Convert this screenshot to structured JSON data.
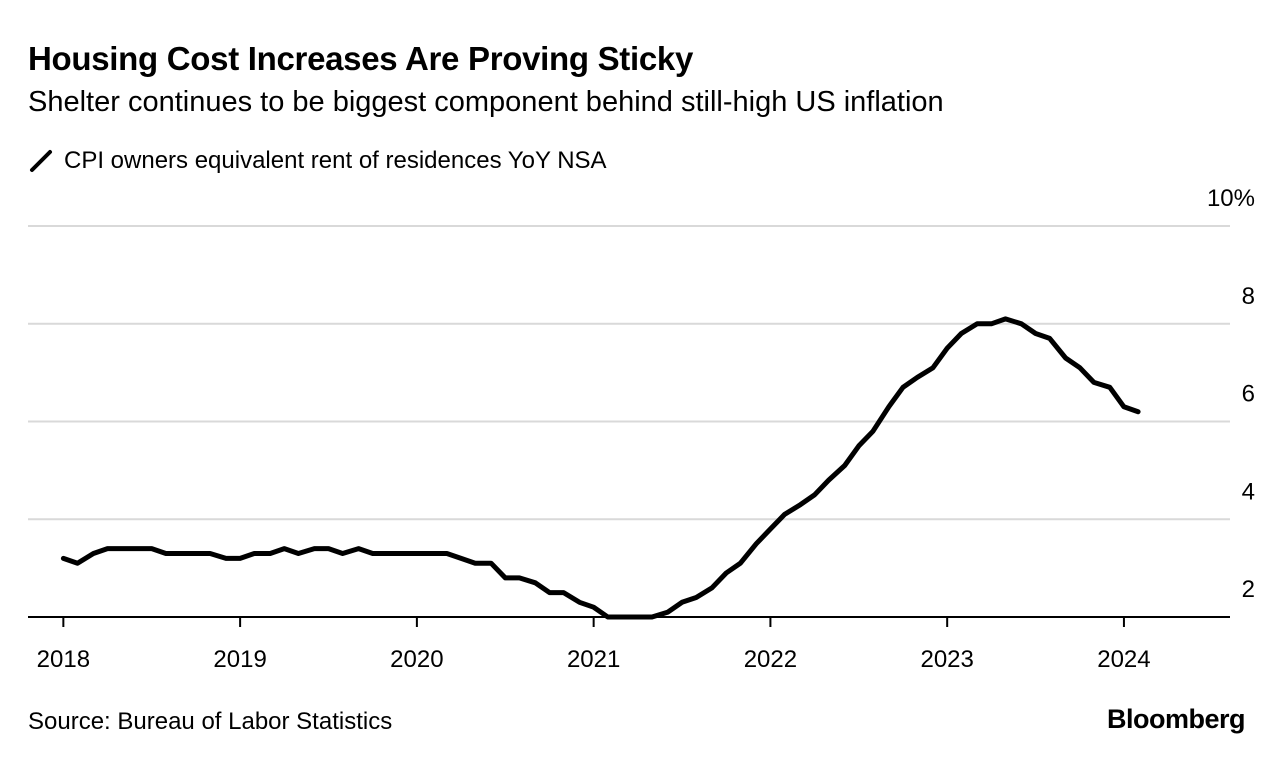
{
  "header": {
    "title": "Housing Cost Increases Are Proving Sticky",
    "subtitle": "Shelter continues to be biggest component behind still-high US inflation"
  },
  "footer": {
    "source": "Source: Bureau of Labor Statistics",
    "brand": "Bloomberg"
  },
  "colors": {
    "line": "#000000",
    "grid": "#d9d9d9",
    "axis": "#000000"
  },
  "chart_data": {
    "type": "line",
    "title": "Housing Cost Increases Are Proving Sticky",
    "subtitle": "Shelter continues to be biggest component behind still-high US inflation",
    "xlabel": "",
    "ylabel": "",
    "ylim": [
      2,
      10
    ],
    "xlim": [
      2017.8,
      2024.6
    ],
    "grid": true,
    "legend_position": "top-left",
    "y_ticks": [
      {
        "value": 2,
        "label": "2"
      },
      {
        "value": 4,
        "label": "4"
      },
      {
        "value": 6,
        "label": "6"
      },
      {
        "value": 8,
        "label": "8"
      },
      {
        "value": 10,
        "label": "10%"
      }
    ],
    "x_ticks": [
      {
        "value": 2018,
        "label": "2018"
      },
      {
        "value": 2019,
        "label": "2019"
      },
      {
        "value": 2020,
        "label": "2020"
      },
      {
        "value": 2021,
        "label": "2021"
      },
      {
        "value": 2022,
        "label": "2022"
      },
      {
        "value": 2023,
        "label": "2023"
      },
      {
        "value": 2024,
        "label": "2024"
      }
    ],
    "series": [
      {
        "name": "CPI owners equivalent rent of residences YoY NSA",
        "points": [
          [
            2018.0,
            3.2
          ],
          [
            2018.08,
            3.1
          ],
          [
            2018.17,
            3.3
          ],
          [
            2018.25,
            3.4
          ],
          [
            2018.33,
            3.4
          ],
          [
            2018.42,
            3.4
          ],
          [
            2018.5,
            3.4
          ],
          [
            2018.58,
            3.3
          ],
          [
            2018.67,
            3.3
          ],
          [
            2018.75,
            3.3
          ],
          [
            2018.83,
            3.3
          ],
          [
            2018.92,
            3.2
          ],
          [
            2019.0,
            3.2
          ],
          [
            2019.08,
            3.3
          ],
          [
            2019.17,
            3.3
          ],
          [
            2019.25,
            3.4
          ],
          [
            2019.33,
            3.3
          ],
          [
            2019.42,
            3.4
          ],
          [
            2019.5,
            3.4
          ],
          [
            2019.58,
            3.3
          ],
          [
            2019.67,
            3.4
          ],
          [
            2019.75,
            3.3
          ],
          [
            2019.83,
            3.3
          ],
          [
            2019.92,
            3.3
          ],
          [
            2020.0,
            3.3
          ],
          [
            2020.08,
            3.3
          ],
          [
            2020.17,
            3.3
          ],
          [
            2020.25,
            3.2
          ],
          [
            2020.33,
            3.1
          ],
          [
            2020.42,
            3.1
          ],
          [
            2020.5,
            2.8
          ],
          [
            2020.58,
            2.8
          ],
          [
            2020.67,
            2.7
          ],
          [
            2020.75,
            2.5
          ],
          [
            2020.83,
            2.5
          ],
          [
            2020.92,
            2.3
          ],
          [
            2021.0,
            2.2
          ],
          [
            2021.08,
            2.0
          ],
          [
            2021.17,
            2.0
          ],
          [
            2021.25,
            2.0
          ],
          [
            2021.33,
            2.0
          ],
          [
            2021.42,
            2.1
          ],
          [
            2021.5,
            2.3
          ],
          [
            2021.58,
            2.4
          ],
          [
            2021.67,
            2.6
          ],
          [
            2021.75,
            2.9
          ],
          [
            2021.83,
            3.1
          ],
          [
            2021.92,
            3.5
          ],
          [
            2022.0,
            3.8
          ],
          [
            2022.08,
            4.1
          ],
          [
            2022.17,
            4.3
          ],
          [
            2022.25,
            4.5
          ],
          [
            2022.33,
            4.8
          ],
          [
            2022.42,
            5.1
          ],
          [
            2022.5,
            5.5
          ],
          [
            2022.58,
            5.8
          ],
          [
            2022.67,
            6.3
          ],
          [
            2022.75,
            6.7
          ],
          [
            2022.83,
            6.9
          ],
          [
            2022.92,
            7.1
          ],
          [
            2023.0,
            7.5
          ],
          [
            2023.08,
            7.8
          ],
          [
            2023.17,
            8.0
          ],
          [
            2023.25,
            8.0
          ],
          [
            2023.33,
            8.1
          ],
          [
            2023.42,
            8.0
          ],
          [
            2023.5,
            7.8
          ],
          [
            2023.58,
            7.7
          ],
          [
            2023.67,
            7.3
          ],
          [
            2023.75,
            7.1
          ],
          [
            2023.83,
            6.8
          ],
          [
            2023.92,
            6.7
          ],
          [
            2024.0,
            6.3
          ],
          [
            2024.08,
            6.2
          ]
        ]
      }
    ]
  }
}
